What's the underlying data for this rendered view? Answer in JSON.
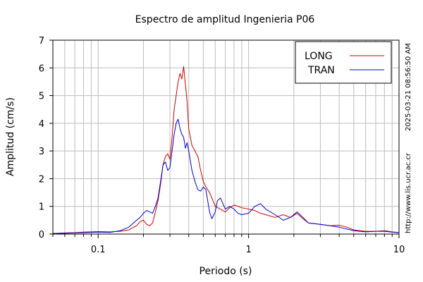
{
  "chart_data": {
    "type": "line",
    "title": "Espectro de amplitud Ingenieria P06",
    "xlabel": "Periodo (s)",
    "ylabel": "Amplitud (cm/s)",
    "xscale": "log",
    "xlim": [
      0.05,
      10
    ],
    "ylim": [
      0,
      7
    ],
    "xticks": [
      {
        "value": 0.1,
        "label": "0.1"
      },
      {
        "value": 1,
        "label": "1"
      },
      {
        "value": 10,
        "label": "10"
      }
    ],
    "yticks": [
      0,
      1,
      2,
      3,
      4,
      5,
      6,
      7
    ],
    "grid": true,
    "legend_position": "top-right",
    "series": [
      {
        "name": "LONG",
        "color": "#cc0000",
        "points": [
          [
            0.05,
            0.02
          ],
          [
            0.06,
            0.04
          ],
          [
            0.07,
            0.05
          ],
          [
            0.08,
            0.07
          ],
          [
            0.09,
            0.08
          ],
          [
            0.1,
            0.09
          ],
          [
            0.12,
            0.08
          ],
          [
            0.14,
            0.1
          ],
          [
            0.16,
            0.15
          ],
          [
            0.18,
            0.3
          ],
          [
            0.19,
            0.45
          ],
          [
            0.2,
            0.5
          ],
          [
            0.21,
            0.35
          ],
          [
            0.22,
            0.3
          ],
          [
            0.23,
            0.4
          ],
          [
            0.24,
            0.8
          ],
          [
            0.25,
            1.2
          ],
          [
            0.26,
            1.8
          ],
          [
            0.27,
            2.5
          ],
          [
            0.28,
            2.8
          ],
          [
            0.29,
            2.9
          ],
          [
            0.3,
            2.7
          ],
          [
            0.31,
            3.5
          ],
          [
            0.32,
            4.5
          ],
          [
            0.33,
            5.0
          ],
          [
            0.34,
            5.5
          ],
          [
            0.35,
            5.8
          ],
          [
            0.36,
            5.6
          ],
          [
            0.37,
            6.05
          ],
          [
            0.38,
            5.4
          ],
          [
            0.39,
            4.8
          ],
          [
            0.4,
            3.8
          ],
          [
            0.42,
            3.2
          ],
          [
            0.44,
            3.0
          ],
          [
            0.46,
            2.8
          ],
          [
            0.48,
            2.3
          ],
          [
            0.5,
            1.9
          ],
          [
            0.52,
            1.7
          ],
          [
            0.55,
            1.5
          ],
          [
            0.58,
            1.2
          ],
          [
            0.6,
            1.0
          ],
          [
            0.65,
            0.9
          ],
          [
            0.7,
            0.8
          ],
          [
            0.75,
            0.95
          ],
          [
            0.8,
            1.05
          ],
          [
            0.85,
            1.0
          ],
          [
            0.9,
            0.95
          ],
          [
            1.0,
            0.9
          ],
          [
            1.1,
            0.85
          ],
          [
            1.2,
            0.75
          ],
          [
            1.3,
            0.7
          ],
          [
            1.5,
            0.6
          ],
          [
            1.7,
            0.7
          ],
          [
            1.9,
            0.6
          ],
          [
            2.1,
            0.75
          ],
          [
            2.3,
            0.55
          ],
          [
            2.5,
            0.4
          ],
          [
            3.0,
            0.35
          ],
          [
            3.5,
            0.3
          ],
          [
            4.0,
            0.32
          ],
          [
            4.5,
            0.25
          ],
          [
            5.0,
            0.15
          ],
          [
            6.0,
            0.1
          ],
          [
            7.0,
            0.1
          ],
          [
            8.0,
            0.12
          ],
          [
            9.0,
            0.08
          ],
          [
            10.0,
            0.05
          ]
        ]
      },
      {
        "name": "TRAN",
        "color": "#0000cc",
        "points": [
          [
            0.05,
            0.02
          ],
          [
            0.06,
            0.03
          ],
          [
            0.07,
            0.04
          ],
          [
            0.08,
            0.05
          ],
          [
            0.09,
            0.06
          ],
          [
            0.1,
            0.07
          ],
          [
            0.12,
            0.06
          ],
          [
            0.14,
            0.12
          ],
          [
            0.16,
            0.25
          ],
          [
            0.18,
            0.5
          ],
          [
            0.19,
            0.6
          ],
          [
            0.2,
            0.75
          ],
          [
            0.21,
            0.85
          ],
          [
            0.22,
            0.8
          ],
          [
            0.23,
            0.75
          ],
          [
            0.24,
            1.0
          ],
          [
            0.25,
            1.3
          ],
          [
            0.26,
            1.9
          ],
          [
            0.27,
            2.5
          ],
          [
            0.28,
            2.6
          ],
          [
            0.29,
            2.3
          ],
          [
            0.3,
            2.4
          ],
          [
            0.31,
            3.0
          ],
          [
            0.32,
            3.6
          ],
          [
            0.33,
            4.0
          ],
          [
            0.34,
            4.15
          ],
          [
            0.35,
            3.8
          ],
          [
            0.36,
            3.6
          ],
          [
            0.37,
            3.5
          ],
          [
            0.38,
            3.1
          ],
          [
            0.39,
            3.3
          ],
          [
            0.4,
            3.0
          ],
          [
            0.42,
            2.3
          ],
          [
            0.44,
            1.9
          ],
          [
            0.46,
            1.6
          ],
          [
            0.48,
            1.55
          ],
          [
            0.5,
            1.7
          ],
          [
            0.52,
            1.6
          ],
          [
            0.55,
            0.8
          ],
          [
            0.57,
            0.55
          ],
          [
            0.6,
            0.8
          ],
          [
            0.62,
            1.2
          ],
          [
            0.65,
            1.3
          ],
          [
            0.7,
            0.9
          ],
          [
            0.75,
            1.0
          ],
          [
            0.8,
            0.9
          ],
          [
            0.85,
            0.75
          ],
          [
            0.9,
            0.7
          ],
          [
            1.0,
            0.75
          ],
          [
            1.1,
            1.0
          ],
          [
            1.2,
            1.1
          ],
          [
            1.3,
            0.9
          ],
          [
            1.5,
            0.7
          ],
          [
            1.7,
            0.5
          ],
          [
            1.9,
            0.6
          ],
          [
            2.1,
            0.8
          ],
          [
            2.3,
            0.6
          ],
          [
            2.5,
            0.4
          ],
          [
            3.0,
            0.35
          ],
          [
            3.5,
            0.3
          ],
          [
            4.0,
            0.25
          ],
          [
            5.0,
            0.12
          ],
          [
            6.0,
            0.08
          ],
          [
            7.0,
            0.1
          ],
          [
            8.0,
            0.1
          ],
          [
            9.0,
            0.07
          ],
          [
            10.0,
            0.05
          ]
        ]
      }
    ]
  },
  "side_text": {
    "timestamp": "2025-03-21 08:56:50 AM",
    "url": "http://www.lis.ucr.ac.cr"
  }
}
